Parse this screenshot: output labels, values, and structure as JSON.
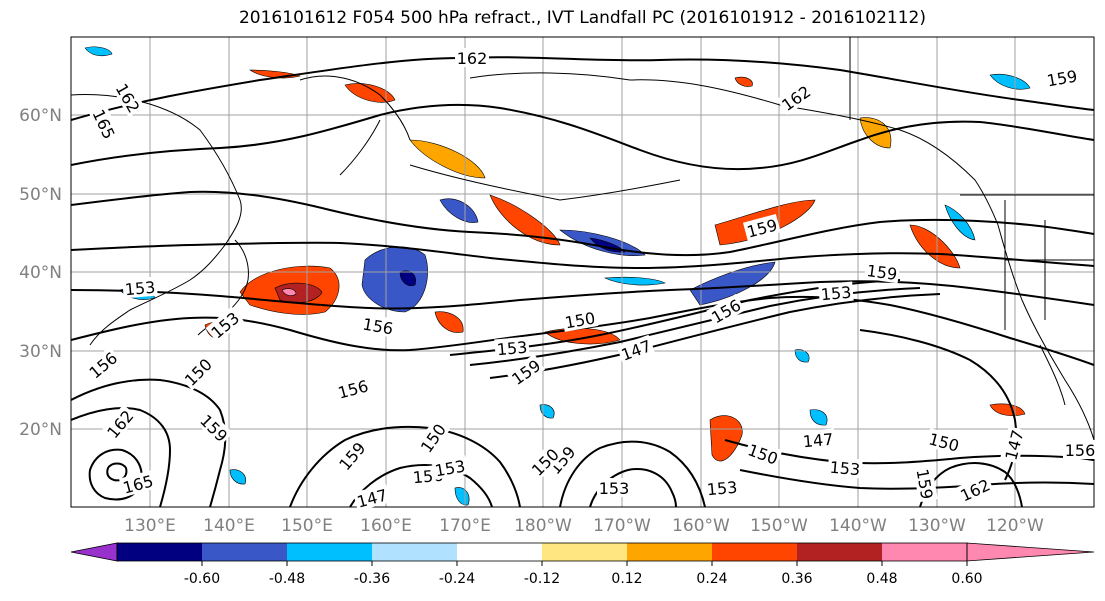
{
  "title": "2016101612 F054 500 hPa refract., IVT Landfall PC (2016101912 - 2016102112)",
  "lat_labels": [
    "60°N",
    "50°N",
    "40°N",
    "30°N",
    "20°N"
  ],
  "lon_labels": [
    "130°E",
    "140°E",
    "150°E",
    "160°E",
    "170°E",
    "180°W",
    "170°W",
    "160°W",
    "150°W",
    "140°W",
    "130°W",
    "120°W"
  ],
  "contour_labels": [
    "162",
    "162",
    "165",
    "159",
    "162",
    "159",
    "159",
    "153",
    "156",
    "153",
    "156",
    "150",
    "153",
    "156",
    "147",
    "159",
    "156",
    "150",
    "159",
    "162",
    "165",
    "150",
    "159",
    "156",
    "153",
    "147",
    "159",
    "150",
    "153",
    "150",
    "153",
    "147",
    "150",
    "147",
    "159",
    "162",
    "156",
    "153",
    "153"
  ],
  "colorbar": {
    "tick_labels": [
      "-0.60",
      "-0.48",
      "-0.36",
      "-0.24",
      "-0.12",
      "0.12",
      "0.24",
      "0.36",
      "0.48",
      "0.60"
    ],
    "colors": [
      "#9932cc",
      "#000080",
      "#3a57c8",
      "#00bfff",
      "#b0e2ff",
      "#ffffff",
      "#ffe680",
      "#ffa500",
      "#ff4500",
      "#b22222",
      "#ff88b0"
    ]
  },
  "coast_color": "#000000",
  "grid_color": "#a0a0a0"
}
